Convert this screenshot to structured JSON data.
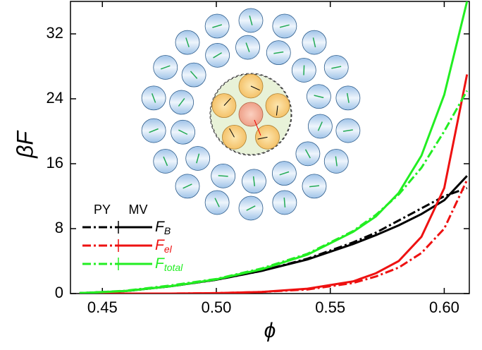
{
  "chart_data": {
    "type": "line",
    "x_label": "ϕ",
    "y_label": "βF",
    "x": [
      0.44,
      0.46,
      0.48,
      0.5,
      0.52,
      0.54,
      0.56,
      0.57,
      0.58,
      0.59,
      0.6,
      0.61
    ],
    "series": [
      {
        "color": "#000000",
        "dash": "dashdot",
        "values": [
          0.05,
          0.3,
          0.9,
          1.7,
          2.8,
          4.3,
          6.3,
          7.5,
          9.0,
          10.5,
          12.0,
          13.0
        ]
      },
      {
        "color": "#000000",
        "dash": "solid",
        "values": [
          0.05,
          0.3,
          0.9,
          1.7,
          2.8,
          4.2,
          6.1,
          7.2,
          8.4,
          9.8,
          11.5,
          14.5
        ]
      },
      {
        "color": "#ee1111",
        "dash": "dashdot",
        "values": [
          0,
          0,
          0,
          0.05,
          0.2,
          0.5,
          1.3,
          2.1,
          3.2,
          5.0,
          8.0,
          14.0
        ]
      },
      {
        "color": "#ee1111",
        "dash": "solid",
        "values": [
          0,
          0,
          0,
          0.05,
          0.2,
          0.6,
          1.5,
          2.5,
          4.0,
          7.0,
          13.0,
          27.0
        ]
      },
      {
        "color": "#22ee22",
        "dash": "dashdot",
        "values": [
          0.05,
          0.35,
          1.0,
          1.8,
          3.1,
          4.9,
          7.7,
          9.7,
          12.2,
          15.5,
          20.0,
          25.0
        ]
      },
      {
        "color": "#22ee22",
        "dash": "solid",
        "values": [
          0.05,
          0.3,
          0.9,
          1.75,
          3.0,
          4.8,
          7.6,
          9.5,
          12.4,
          17.0,
          24.5,
          36.0
        ]
      }
    ],
    "legend": {
      "columns": [
        "PY",
        "MV"
      ],
      "entries": [
        {
          "symbol": "F",
          "subscript": "B",
          "color": "#000000"
        },
        {
          "symbol": "F",
          "subscript": "el",
          "color": "#ee1111"
        },
        {
          "symbol": "F",
          "subscript": "total",
          "color": "#22ee22"
        }
      ]
    },
    "xlim": [
      0.436,
      0.611
    ],
    "ylim": [
      0,
      36
    ],
    "xticks": [
      {
        "value": 0.45,
        "label": "0.45"
      },
      {
        "value": 0.5,
        "label": "0.50"
      },
      {
        "value": 0.55,
        "label": "0.55"
      },
      {
        "value": 0.6,
        "label": "0.60"
      }
    ],
    "yticks": [
      0,
      8,
      16,
      24,
      32
    ]
  }
}
